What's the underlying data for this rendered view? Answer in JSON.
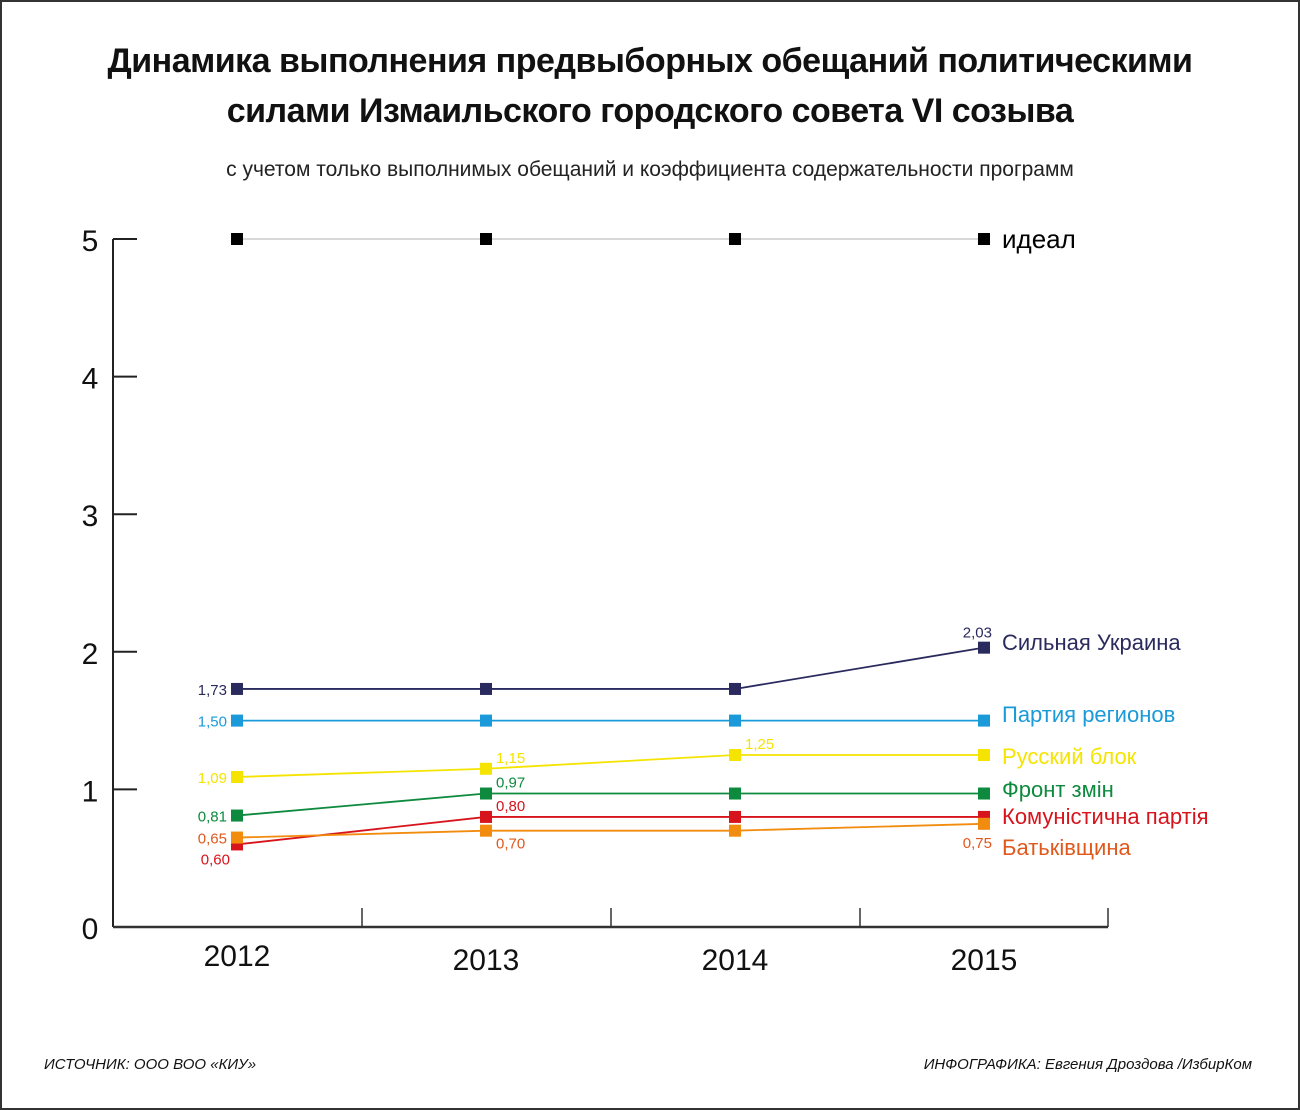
{
  "header": {
    "title_line1": "Динамика выполнения предвыборных обещаний политическими",
    "title_line2": "силами Измаильского городского совета VI созыва",
    "subtitle": "с учетом только выполнимых обещаний и коэффициента содержательности программ"
  },
  "footer": {
    "source": "ИСТОЧНИК: ООО ВОО «КИУ»",
    "credit": "ИНФОГРАФИКА: Евгения Дроздова /ИзбирКом"
  },
  "chart_data": {
    "type": "line",
    "title": "Динамика выполнения предвыборных обещаний политическими силами Измаильского городского совета VI созыва",
    "subtitle": "с учетом только выполнимых обещаний и коэффициента содержательности программ",
    "xlabel": "",
    "ylabel": "",
    "categories": [
      "2012",
      "2013",
      "2014",
      "2015"
    ],
    "ylim": [
      0,
      5
    ],
    "yticks": [
      "0",
      "1",
      "2",
      "3",
      "4",
      "5"
    ],
    "grid": false,
    "legend": "right, at line ends",
    "series": [
      {
        "name": "идеал",
        "color": "#000000",
        "line_color": "#cccccc",
        "values": [
          5,
          5,
          5,
          5
        ],
        "labels": [
          null,
          null,
          null,
          null
        ]
      },
      {
        "name": "Сильная Украина",
        "color": "#2a2a5e",
        "values": [
          1.73,
          1.73,
          1.73,
          2.03
        ],
        "labels": [
          "1,73",
          null,
          null,
          "2,03"
        ]
      },
      {
        "name": "Партия регионов",
        "color": "#1a9ad9",
        "values": [
          1.5,
          1.5,
          1.5,
          1.5
        ],
        "labels": [
          "1,50",
          null,
          null,
          null
        ]
      },
      {
        "name": "Русский блок",
        "color": "#f5e400",
        "values": [
          1.09,
          1.15,
          1.25,
          1.25
        ],
        "labels": [
          "1,09",
          "1,15",
          "1,25",
          null
        ]
      },
      {
        "name": "Фронт змін",
        "color": "#0e8a3e",
        "values": [
          0.81,
          0.97,
          0.97,
          0.97
        ],
        "labels": [
          "0,81",
          "0,97",
          null,
          null
        ]
      },
      {
        "name": "Комуністична партія",
        "color": "#d7141c",
        "values": [
          0.6,
          0.8,
          0.8,
          0.8
        ],
        "labels": [
          "0,60",
          "0,80",
          null,
          null
        ]
      },
      {
        "name": "Батьківщина",
        "color": "#f28c0f",
        "text_color": "#e0581c",
        "values": [
          0.65,
          0.7,
          0.7,
          0.75
        ],
        "labels": [
          "0,65",
          "0,70",
          null,
          "0,75"
        ]
      }
    ]
  }
}
